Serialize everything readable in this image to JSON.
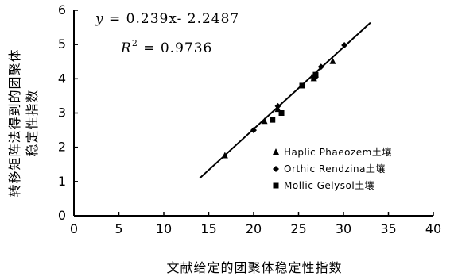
{
  "chart_data": {
    "type": "scatter",
    "xlabel": "文献给定的团聚体稳定性指数",
    "ylabel_line1": "转移矩阵法得到的团聚体",
    "ylabel_line2": "稳定性指数",
    "xlim": [
      0,
      40
    ],
    "ylim": [
      0,
      6
    ],
    "x_ticks": [
      0,
      5,
      10,
      15,
      20,
      25,
      30,
      35,
      40
    ],
    "y_ticks": [
      0,
      1,
      2,
      3,
      4,
      5,
      6
    ],
    "grid": false,
    "legend_position": "right-middle",
    "equation": {
      "y_var": "y",
      "rhs": " = 0.239x- 2.2487",
      "r_var": "R",
      "r_sup": "2",
      "r_rhs": " = 0.9736"
    },
    "trendline": {
      "slope": 0.239,
      "intercept": -2.2487,
      "x_range": [
        14,
        33
      ]
    },
    "series": [
      {
        "name": "Haplic Phaeozem土壤",
        "marker": "triangle",
        "points": [
          [
            16.8,
            1.75
          ],
          [
            21.2,
            2.75
          ],
          [
            22.7,
            3.1
          ],
          [
            26.7,
            4.0
          ],
          [
            28.8,
            4.5
          ]
        ]
      },
      {
        "name": "Orthic Rendzina土壤",
        "marker": "diamond",
        "points": [
          [
            20.0,
            2.5
          ],
          [
            22.7,
            3.2
          ],
          [
            26.9,
            4.05
          ],
          [
            27.5,
            4.35
          ],
          [
            30.1,
            4.98
          ]
        ]
      },
      {
        "name": "Mollic Gelysol土壤",
        "marker": "square",
        "points": [
          [
            22.1,
            2.8
          ],
          [
            23.1,
            3.0
          ],
          [
            25.4,
            3.8
          ],
          [
            26.7,
            4.05
          ],
          [
            26.9,
            4.12
          ]
        ]
      }
    ]
  }
}
